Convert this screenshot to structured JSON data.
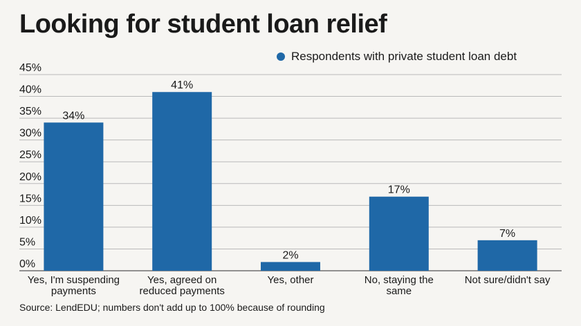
{
  "chart_data": {
    "type": "bar",
    "title": "Looking for student loan relief",
    "legend": {
      "position": "top-right",
      "entries": [
        "Respondents with private student loan debt"
      ]
    },
    "categories": [
      [
        "Yes, I'm suspending",
        "payments"
      ],
      [
        "Yes, agreed on",
        "reduced payments"
      ],
      [
        "Yes, other"
      ],
      [
        "No, staying the",
        "same"
      ],
      [
        "Not sure/didn't say"
      ]
    ],
    "series": [
      {
        "name": "Respondents with private student loan debt",
        "values": [
          34,
          41,
          2,
          17,
          7
        ],
        "color": "#1f68a7"
      }
    ],
    "data_labels": [
      "34%",
      "41%",
      "2%",
      "17%",
      "7%"
    ],
    "ylim": [
      0,
      45
    ],
    "yticks": [
      0,
      5,
      10,
      15,
      20,
      25,
      30,
      35,
      40,
      45
    ],
    "ytick_labels": [
      "0%",
      "5%",
      "10%",
      "15%",
      "20%",
      "25%",
      "30%",
      "35%",
      "40%",
      "45%"
    ],
    "grid": true,
    "source": "Source: LendEDU; numbers don't add up to 100% because of rounding"
  }
}
